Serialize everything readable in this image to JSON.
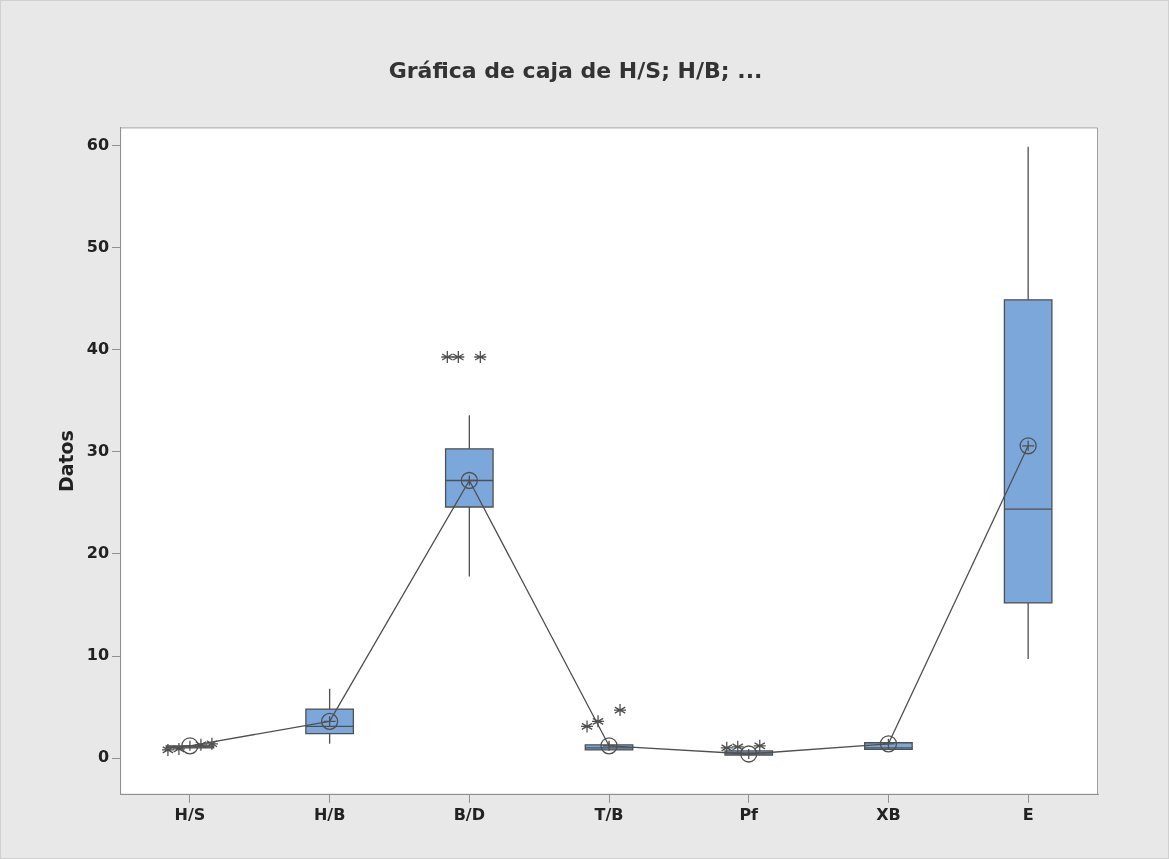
{
  "chart_data": {
    "type": "box",
    "title": "Gráfica de caja de H/S; H/B; ...",
    "ylabel": "Datos",
    "categories": [
      "H/S",
      "H/B",
      "B/D",
      "T/B",
      "Pf",
      "XB",
      "E"
    ],
    "series": [
      {
        "type": "box",
        "color": "#7ba7db",
        "marker": "star",
        "boxes": [
          {
            "low": 1.0,
            "q1": 1.0,
            "median": 1.1,
            "q3": 1.2,
            "high": 1.2,
            "mean": 1.2,
            "outliers": [
              0.8,
              0.9,
              1.3,
              1.4
            ]
          },
          {
            "low": 1.4,
            "q1": 2.4,
            "median": 3.1,
            "q3": 4.8,
            "high": 6.8,
            "mean": 3.6
          },
          {
            "low": 17.8,
            "q1": 24.6,
            "median": 27.2,
            "q3": 30.3,
            "high": 33.6,
            "mean": 27.2,
            "outliers": [
              39.3,
              39.3,
              39.3
            ]
          },
          {
            "low": 0.8,
            "q1": 0.8,
            "median": 1.0,
            "q3": 1.3,
            "high": 1.5,
            "mean": 1.2,
            "outliers": [
              3.1,
              3.6,
              4.7
            ]
          },
          {
            "low": 0.3,
            "q1": 0.3,
            "median": 0.5,
            "q3": 0.7,
            "high": 0.7,
            "mean": 0.4,
            "outliers": [
              1.0,
              1.1,
              1.2
            ]
          },
          {
            "low": 0.85,
            "q1": 0.85,
            "median": 1.0,
            "q3": 1.5,
            "high": 1.5,
            "mean": 1.4
          },
          {
            "low": 9.7,
            "q1": 15.2,
            "median": 24.4,
            "q3": 44.9,
            "high": 59.9,
            "mean": 30.6
          }
        ]
      },
      {
        "type": "line",
        "color": "#505050",
        "marker": "none",
        "values": [
          1.2,
          3.6,
          27.2,
          1.2,
          0.4,
          1.4,
          30.6
        ]
      }
    ],
    "ylim": [
      -3.6,
      61.8
    ],
    "yticks": [
      0,
      10,
      20,
      30,
      40,
      50,
      60
    ],
    "grid": false,
    "legend": false
  }
}
